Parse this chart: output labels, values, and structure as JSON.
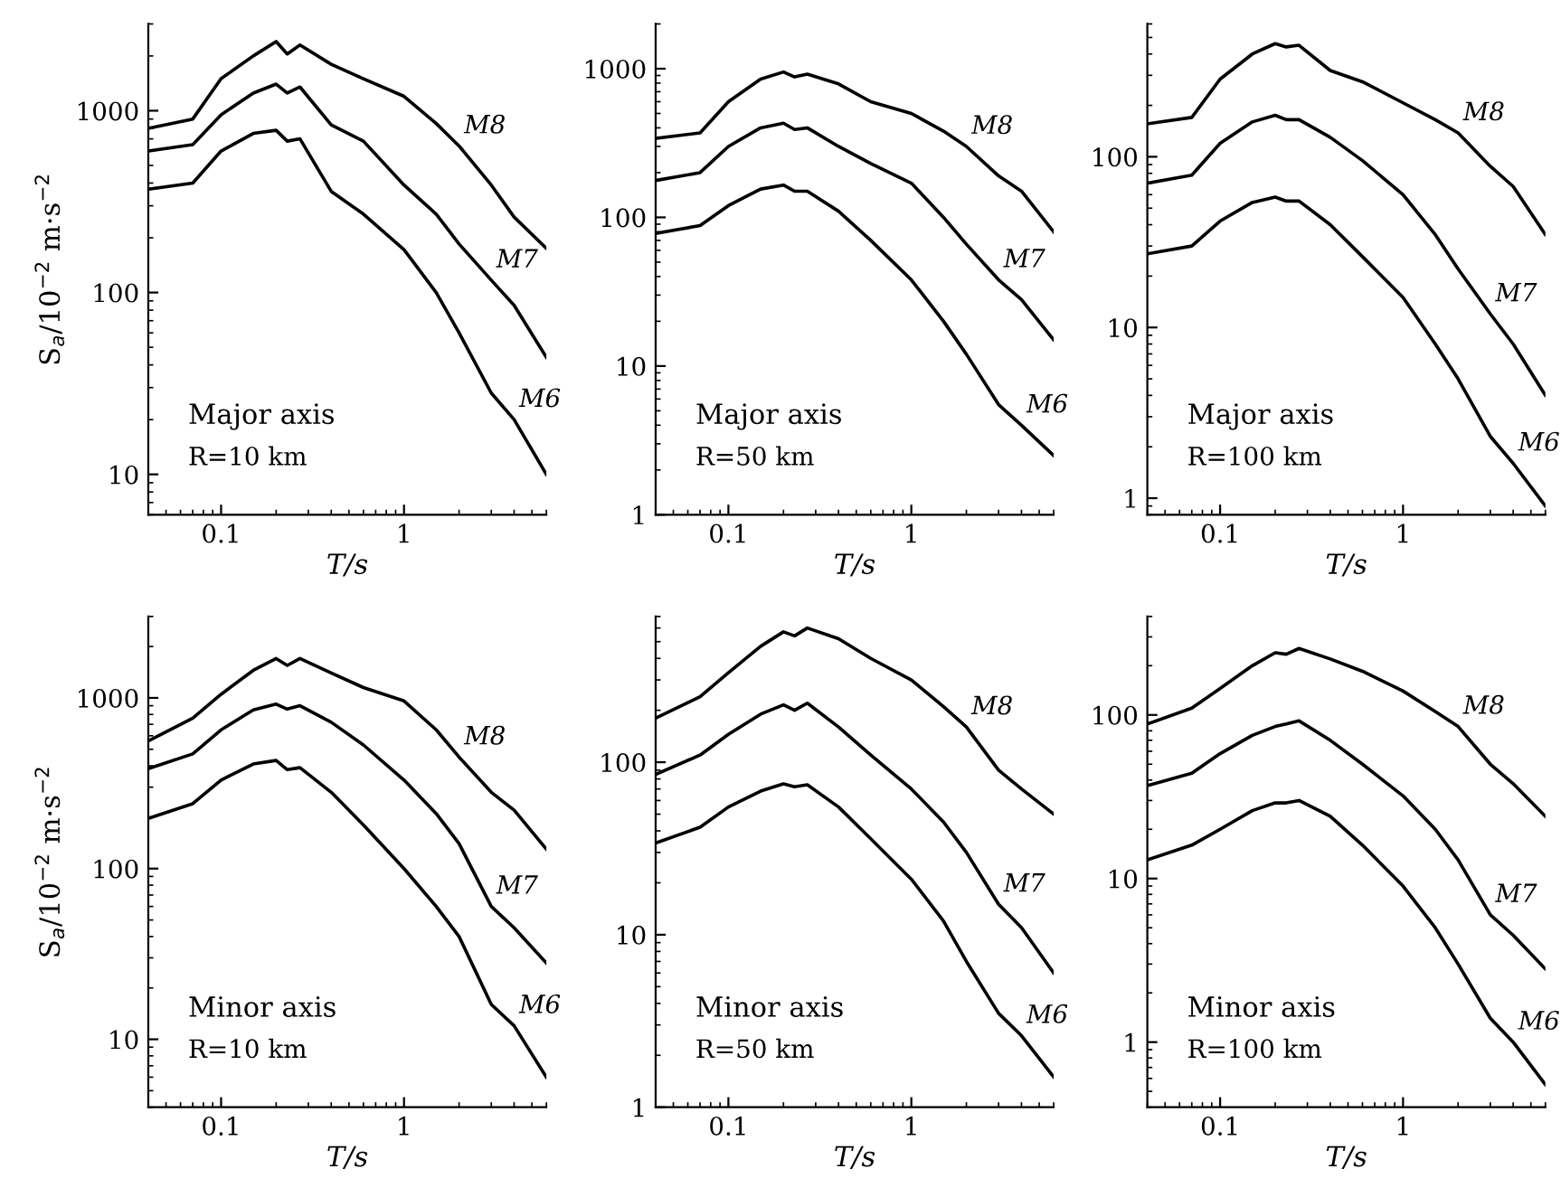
{
  "chart_data": [
    {
      "type": "line",
      "xlabel": "T/s",
      "ylabel": "S$_{a}$/10$^{−2}$ m·s$^{−2}$",
      "log": "xy",
      "grid": false,
      "legend": false,
      "marker": "none",
      "line_style": "solid",
      "xlim": [
        0.04,
        6
      ],
      "ylim": [
        6,
        3000
      ],
      "xticks": [
        0.1,
        1
      ],
      "yticks": [
        10,
        100,
        1000
      ],
      "annotations": [
        "Major axis",
        "R=10 km"
      ],
      "x": [
        0.04,
        0.07,
        0.1,
        0.15,
        0.2,
        0.23,
        0.27,
        0.4,
        0.6,
        1,
        1.5,
        2,
        3,
        4,
        6
      ],
      "series": [
        {
          "name": "M8",
          "color": "#000000",
          "values": [
            800,
            900,
            1500,
            2000,
            2400,
            2050,
            2300,
            1800,
            1500,
            1200,
            850,
            640,
            390,
            260,
            175
          ]
        },
        {
          "name": "M7",
          "color": "#000000",
          "values": [
            600,
            650,
            950,
            1250,
            1400,
            1250,
            1350,
            835,
            680,
            390,
            270,
            185,
            117,
            85,
            44
          ]
        },
        {
          "name": "M6",
          "color": "#000000",
          "values": [
            370,
            400,
            600,
            750,
            780,
            680,
            700,
            360,
            270,
            172,
            100,
            60,
            28,
            20,
            10
          ]
        }
      ]
    },
    {
      "type": "line",
      "xlabel": "T/s",
      "log": "xy",
      "grid": false,
      "legend": false,
      "marker": "none",
      "line_style": "solid",
      "xlim": [
        0.04,
        6
      ],
      "ylim": [
        1,
        2000
      ],
      "xticks": [
        0.1,
        1
      ],
      "yticks": [
        1,
        10,
        100,
        1000
      ],
      "annotations": [
        "Major axis",
        "R=50 km"
      ],
      "x": [
        0.04,
        0.07,
        0.1,
        0.15,
        0.2,
        0.23,
        0.27,
        0.4,
        0.6,
        1,
        1.5,
        2,
        3,
        4,
        6
      ],
      "series": [
        {
          "name": "M8",
          "color": "#000000",
          "values": [
            340,
            370,
            600,
            850,
            950,
            880,
            920,
            790,
            600,
            500,
            380,
            300,
            190,
            150,
            80
          ]
        },
        {
          "name": "M7",
          "color": "#000000",
          "values": [
            177,
            200,
            300,
            400,
            430,
            390,
            400,
            300,
            230,
            170,
            100,
            66,
            38,
            28,
            15
          ]
        },
        {
          "name": "M6",
          "color": "#000000",
          "values": [
            78,
            88,
            120,
            155,
            165,
            150,
            150,
            110,
            70,
            38,
            20,
            12,
            5.5,
            4,
            2.5
          ]
        }
      ]
    },
    {
      "type": "line",
      "xlabel": "T/s",
      "log": "xy",
      "grid": false,
      "legend": false,
      "marker": "none",
      "line_style": "solid",
      "xlim": [
        0.04,
        6
      ],
      "ylim": [
        0.8,
        600
      ],
      "xticks": [
        0.1,
        1
      ],
      "yticks": [
        1,
        10,
        100
      ],
      "annotations": [
        "Major axis",
        "R=100 km"
      ],
      "x": [
        0.04,
        0.07,
        0.1,
        0.15,
        0.2,
        0.23,
        0.27,
        0.4,
        0.6,
        1,
        1.5,
        2,
        3,
        4,
        6
      ],
      "series": [
        {
          "name": "M8",
          "color": "#000000",
          "values": [
            156,
            170,
            285,
            400,
            460,
            440,
            450,
            320,
            275,
            207,
            165,
            138,
            88,
            67,
            35
          ]
        },
        {
          "name": "M7",
          "color": "#000000",
          "values": [
            70,
            78,
            120,
            160,
            175,
            165,
            165,
            130,
            95,
            60,
            35,
            22,
            12,
            8,
            4
          ]
        },
        {
          "name": "M6",
          "color": "#000000",
          "values": [
            27,
            30,
            42,
            54,
            58,
            55,
            55,
            40,
            26,
            15,
            8,
            5,
            2.3,
            1.6,
            0.9
          ]
        }
      ]
    },
    {
      "type": "line",
      "xlabel": "T/s",
      "ylabel": "S$_{a}$/10$^{−2}$ m·s$^{−2}$",
      "log": "xy",
      "grid": false,
      "legend": false,
      "marker": "none",
      "line_style": "solid",
      "xlim": [
        0.04,
        6
      ],
      "ylim": [
        4,
        3000
      ],
      "xticks": [
        0.1,
        1
      ],
      "yticks": [
        10,
        100,
        1000
      ],
      "annotations": [
        "Minor axis",
        "R=10 km"
      ],
      "x": [
        0.04,
        0.07,
        0.1,
        0.15,
        0.2,
        0.23,
        0.27,
        0.4,
        0.6,
        1,
        1.5,
        2,
        3,
        4,
        6
      ],
      "series": [
        {
          "name": "M8",
          "color": "#000000",
          "values": [
            560,
            760,
            1050,
            1450,
            1700,
            1550,
            1700,
            1400,
            1150,
            960,
            650,
            450,
            280,
            220,
            130
          ]
        },
        {
          "name": "M7",
          "color": "#000000",
          "values": [
            385,
            470,
            650,
            850,
            920,
            860,
            900,
            720,
            530,
            330,
            210,
            140,
            60,
            45,
            28
          ]
        },
        {
          "name": "M6",
          "color": "#000000",
          "values": [
            197,
            240,
            330,
            410,
            430,
            380,
            390,
            280,
            180,
            100,
            60,
            40,
            16,
            12,
            6
          ]
        }
      ]
    },
    {
      "type": "line",
      "xlabel": "T/s",
      "log": "xy",
      "grid": false,
      "legend": false,
      "marker": "none",
      "line_style": "solid",
      "xlim": [
        0.04,
        6
      ],
      "ylim": [
        1,
        700
      ],
      "xticks": [
        0.1,
        1
      ],
      "yticks": [
        1,
        10,
        100
      ],
      "annotations": [
        "Minor axis",
        "R=50 km"
      ],
      "x": [
        0.04,
        0.07,
        0.1,
        0.15,
        0.2,
        0.23,
        0.27,
        0.4,
        0.6,
        1,
        1.5,
        2,
        3,
        4,
        6
      ],
      "series": [
        {
          "name": "M8",
          "color": "#000000",
          "values": [
            180,
            240,
            330,
            470,
            570,
            540,
            600,
            520,
            400,
            300,
            210,
            160,
            90,
            70,
            50
          ]
        },
        {
          "name": "M7",
          "color": "#000000",
          "values": [
            85,
            110,
            145,
            190,
            215,
            200,
            220,
            160,
            110,
            70,
            45,
            30,
            15,
            11,
            6
          ]
        },
        {
          "name": "M6",
          "color": "#000000",
          "values": [
            34,
            42,
            55,
            68,
            75,
            72,
            74,
            55,
            36,
            21,
            12,
            7,
            3.5,
            2.6,
            1.5
          ]
        }
      ]
    },
    {
      "type": "line",
      "xlabel": "T/s",
      "log": "xy",
      "grid": false,
      "legend": false,
      "marker": "none",
      "line_style": "solid",
      "xlim": [
        0.04,
        6
      ],
      "ylim": [
        0.4,
        400
      ],
      "xticks": [
        0.1,
        1
      ],
      "yticks": [
        1,
        10,
        100
      ],
      "annotations": [
        "Minor axis",
        "R=100 km"
      ],
      "x": [
        0.04,
        0.07,
        0.1,
        0.15,
        0.2,
        0.23,
        0.27,
        0.4,
        0.6,
        1,
        1.5,
        2,
        3,
        4,
        6
      ],
      "series": [
        {
          "name": "M8",
          "color": "#000000",
          "values": [
            88,
            110,
            145,
            200,
            240,
            235,
            255,
            220,
            185,
            140,
            105,
            85,
            50,
            38,
            24
          ]
        },
        {
          "name": "M7",
          "color": "#000000",
          "values": [
            37,
            44,
            58,
            75,
            85,
            88,
            92,
            70,
            50,
            32,
            20,
            13,
            6,
            4.5,
            2.8
          ]
        },
        {
          "name": "M6",
          "color": "#000000",
          "values": [
            13,
            16,
            20,
            26,
            29,
            29,
            30,
            24,
            16,
            9,
            5,
            3,
            1.4,
            1.0,
            0.55
          ]
        }
      ]
    }
  ]
}
